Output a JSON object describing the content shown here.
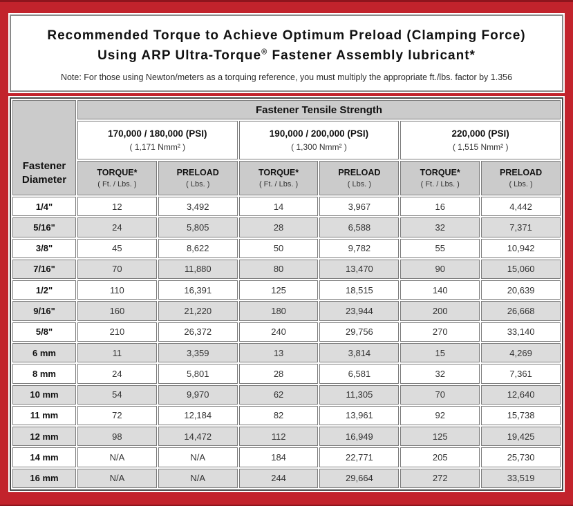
{
  "title": {
    "line1": "Recommended Torque to Achieve Optimum Preload (Clamping Force)",
    "line2_pre": "Using ARP Ultra-Torque",
    "line2_reg": "®",
    "line2_post": " Fastener Assembly lubricant*",
    "note": "Note: For those using Newton/meters as a torquing reference, you must multiply the appropriate ft./lbs. factor by 1.356"
  },
  "table": {
    "corner_header_line1": "Fastener",
    "corner_header_line2": "Diameter",
    "group_header": "Fastener Tensile Strength",
    "strength_groups": [
      {
        "psi": "170,000 / 180,000 (PSI)",
        "nmm": "( 1,171 Nmm² )"
      },
      {
        "psi": "190,000 / 200,000 (PSI)",
        "nmm": "( 1,300 Nmm² )"
      },
      {
        "psi": "220,000 (PSI)",
        "nmm": "( 1,515 Nmm² )"
      }
    ],
    "sub_headers": {
      "torque_label": "TORQUE*",
      "torque_unit": "( Ft. / Lbs. )",
      "preload_label": "PRELOAD",
      "preload_unit": "( Lbs. )"
    },
    "rows": [
      {
        "d": "1/4\"",
        "v": [
          "12",
          "3,492",
          "14",
          "3,967",
          "16",
          "4,442"
        ]
      },
      {
        "d": "5/16\"",
        "v": [
          "24",
          "5,805",
          "28",
          "6,588",
          "32",
          "7,371"
        ]
      },
      {
        "d": "3/8\"",
        "v": [
          "45",
          "8,622",
          "50",
          "9,782",
          "55",
          "10,942"
        ]
      },
      {
        "d": "7/16\"",
        "v": [
          "70",
          "11,880",
          "80",
          "13,470",
          "90",
          "15,060"
        ]
      },
      {
        "d": "1/2\"",
        "v": [
          "110",
          "16,391",
          "125",
          "18,515",
          "140",
          "20,639"
        ]
      },
      {
        "d": "9/16\"",
        "v": [
          "160",
          "21,220",
          "180",
          "23,944",
          "200",
          "26,668"
        ]
      },
      {
        "d": "5/8\"",
        "v": [
          "210",
          "26,372",
          "240",
          "29,756",
          "270",
          "33,140"
        ]
      },
      {
        "d": "6 mm",
        "v": [
          "11",
          "3,359",
          "13",
          "3,814",
          "15",
          "4,269"
        ]
      },
      {
        "d": "8 mm",
        "v": [
          "24",
          "5,801",
          "28",
          "6,581",
          "32",
          "7,361"
        ]
      },
      {
        "d": "10 mm",
        "v": [
          "54",
          "9,970",
          "62",
          "11,305",
          "70",
          "12,640"
        ]
      },
      {
        "d": "11 mm",
        "v": [
          "72",
          "12,184",
          "82",
          "13,961",
          "92",
          "15,738"
        ]
      },
      {
        "d": "12 mm",
        "v": [
          "98",
          "14,472",
          "112",
          "16,949",
          "125",
          "19,425"
        ]
      },
      {
        "d": "14 mm",
        "v": [
          "N/A",
          "N/A",
          "184",
          "22,771",
          "205",
          "25,730"
        ]
      },
      {
        "d": "16 mm",
        "v": [
          "N/A",
          "N/A",
          "244",
          "29,664",
          "272",
          "33,519"
        ]
      }
    ],
    "colors": {
      "frame_red": "#c2232c",
      "header_gray": "#cbcbcb",
      "alt_row_gray": "#dcdcdc",
      "cell_border": "#7b7b7b"
    }
  }
}
